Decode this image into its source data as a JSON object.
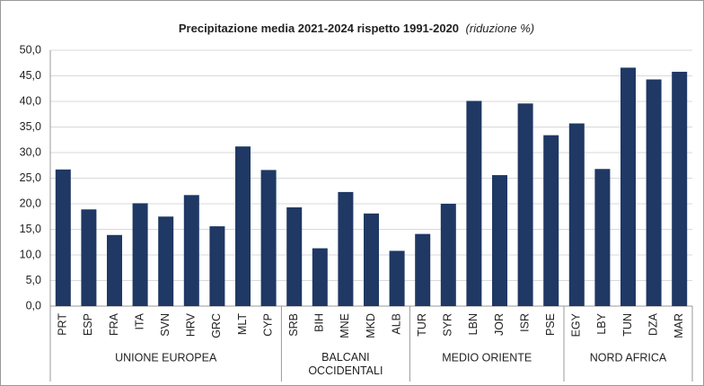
{
  "chart_data": {
    "type": "bar",
    "title": "Precipitazione media 2021-2024 rispetto 1991-2020",
    "subtitle": "(riduzione %)",
    "color": "#1f3864",
    "grid": true,
    "ylim": [
      0,
      50
    ],
    "yticks": [
      {
        "value": 0,
        "label": "0,0"
      },
      {
        "value": 5,
        "label": "5,0"
      },
      {
        "value": 10,
        "label": "10,0"
      },
      {
        "value": 15,
        "label": "15,0"
      },
      {
        "value": 20,
        "label": "20,0"
      },
      {
        "value": 25,
        "label": "25,0"
      },
      {
        "value": 30,
        "label": "30,0"
      },
      {
        "value": 35,
        "label": "35,0"
      },
      {
        "value": 40,
        "label": "40,0"
      },
      {
        "value": 45,
        "label": "45,0"
      },
      {
        "value": 50,
        "label": "50,0"
      }
    ],
    "groups": [
      {
        "name": "UNIONE EUROPEA",
        "categories": [
          "PRT",
          "ESP",
          "FRA",
          "ITA",
          "SVN",
          "HRV",
          "GRC",
          "MLT",
          "CYP"
        ],
        "values": [
          26.7,
          18.9,
          13.9,
          20.1,
          17.5,
          21.7,
          15.6,
          31.2,
          26.6
        ]
      },
      {
        "name": "BALCANI OCCIDENTALI",
        "categories": [
          "SRB",
          "BIH",
          "MNE",
          "MKD",
          "ALB"
        ],
        "values": [
          19.3,
          11.3,
          22.3,
          18.1,
          10.8
        ]
      },
      {
        "name": "MEDIO ORIENTE",
        "categories": [
          "TUR",
          "SYR",
          "LBN",
          "JOR",
          "ISR",
          "PSE"
        ],
        "values": [
          14.1,
          20.0,
          40.1,
          25.6,
          39.6,
          33.4
        ]
      },
      {
        "name": "NORD AFRICA",
        "categories": [
          "EGY",
          "LBY",
          "TUN",
          "DZA",
          "MAR"
        ],
        "values": [
          35.7,
          26.8,
          46.6,
          44.3,
          45.8
        ]
      }
    ]
  }
}
